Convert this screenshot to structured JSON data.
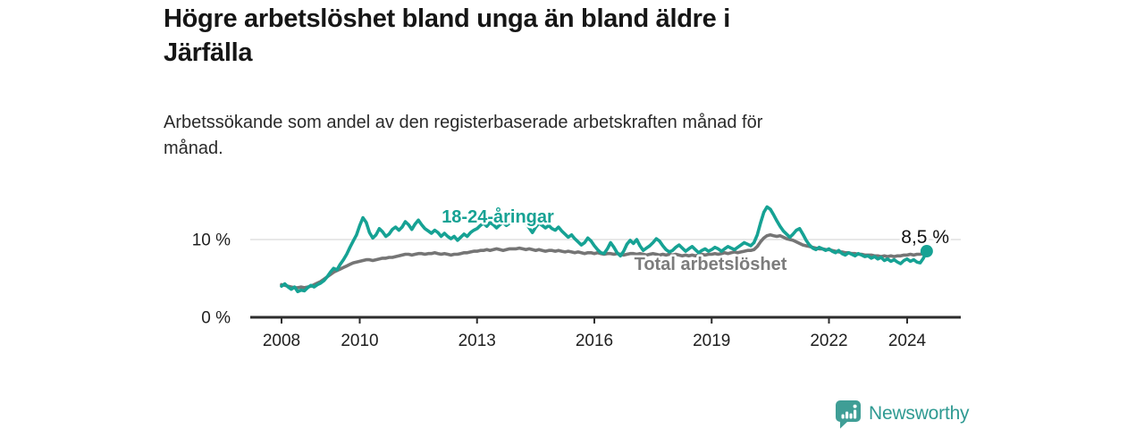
{
  "chart_data": {
    "type": "line",
    "title": "Högre arbetslöshet bland unga än bland äldre i Järfälla",
    "title_lines": [
      "Högre arbetslöshet bland unga än bland äldre i",
      "Järfälla"
    ],
    "subtitle": "Arbetssökande som andel av den registerbaserade arbetskraften månad för månad.",
    "subtitle_lines": [
      "Arbetssökande som andel av den registerbaserade arbetskraften månad för",
      "månad."
    ],
    "xlabel": "",
    "ylabel": "",
    "frequency": "monthly",
    "x_start": "2008-01",
    "x_end": "2024-07",
    "ylim": [
      0,
      16
    ],
    "grid": "single horizontal gridline at 10 %",
    "legend_position": "inline-labels-on-lines",
    "x_ticks": [
      2008,
      2010,
      2013,
      2016,
      2019,
      2022,
      2024
    ],
    "y_ticks": [
      {
        "value": 10,
        "label": "10 %"
      },
      {
        "value": 0,
        "label": "0 %"
      }
    ],
    "end_annotation": {
      "label": "8,5 %",
      "value": 8.5,
      "series": "18-24-åringar"
    },
    "series": [
      {
        "name": "Total arbetslöshet",
        "color": "#757575",
        "values": [
          4.2,
          4.1,
          4.0,
          3.9,
          3.8,
          3.8,
          3.9,
          3.8,
          3.9,
          4.0,
          4.2,
          4.4,
          4.6,
          4.9,
          5.2,
          5.5,
          5.8,
          6.0,
          6.2,
          6.4,
          6.6,
          6.8,
          7.0,
          7.1,
          7.2,
          7.3,
          7.4,
          7.4,
          7.3,
          7.4,
          7.5,
          7.6,
          7.6,
          7.7,
          7.7,
          7.8,
          7.9,
          8.0,
          8.1,
          8.1,
          8.0,
          8.1,
          8.2,
          8.2,
          8.1,
          8.2,
          8.2,
          8.3,
          8.2,
          8.1,
          8.2,
          8.1,
          8.0,
          8.1,
          8.1,
          8.2,
          8.3,
          8.3,
          8.4,
          8.5,
          8.5,
          8.6,
          8.6,
          8.7,
          8.6,
          8.7,
          8.8,
          8.7,
          8.6,
          8.7,
          8.8,
          8.8,
          8.8,
          8.9,
          8.8,
          8.7,
          8.8,
          8.7,
          8.6,
          8.7,
          8.6,
          8.5,
          8.6,
          8.6,
          8.5,
          8.6,
          8.5,
          8.4,
          8.5,
          8.4,
          8.3,
          8.4,
          8.3,
          8.2,
          8.3,
          8.3,
          8.2,
          8.3,
          8.2,
          8.1,
          8.2,
          8.2,
          8.1,
          8.2,
          8.1,
          8.0,
          8.1,
          8.2,
          8.2,
          8.1,
          8.2,
          8.1,
          8.0,
          8.1,
          8.2,
          8.1,
          8.0,
          8.1,
          8.0,
          8.1,
          8.0,
          8.1,
          8.0,
          7.9,
          8.0,
          7.9,
          8.0,
          7.9,
          8.0,
          8.1,
          8.0,
          8.1,
          8.1,
          8.2,
          8.1,
          8.2,
          8.3,
          8.2,
          8.3,
          8.4,
          8.3,
          8.4,
          8.5,
          8.6,
          8.6,
          8.7,
          9.1,
          9.7,
          10.2,
          10.5,
          10.6,
          10.5,
          10.4,
          10.5,
          10.3,
          10.1,
          10.0,
          9.9,
          9.7,
          9.5,
          9.3,
          9.2,
          9.1,
          9.0,
          8.9,
          8.8,
          8.8,
          8.7,
          8.7,
          8.6,
          8.5,
          8.4,
          8.4,
          8.3,
          8.3,
          8.2,
          8.2,
          8.1,
          8.1,
          8.0,
          8.0,
          8.0,
          7.9,
          7.9,
          7.8,
          7.9,
          7.8,
          7.9,
          7.8,
          7.9,
          7.9,
          8.0,
          8.0,
          8.1,
          8.0,
          8.1,
          8.1,
          8.2,
          8.1
        ]
      },
      {
        "name": "18-24-åringar",
        "color": "#16a294",
        "values": [
          4.0,
          4.3,
          3.9,
          3.6,
          3.9,
          3.3,
          3.5,
          3.4,
          3.8,
          4.1,
          3.9,
          4.2,
          4.4,
          4.7,
          5.2,
          5.8,
          6.3,
          6.1,
          6.8,
          7.4,
          8.1,
          9.0,
          9.8,
          10.6,
          11.8,
          12.8,
          12.2,
          10.9,
          10.2,
          10.6,
          11.4,
          11.0,
          10.4,
          10.7,
          11.3,
          11.6,
          11.2,
          11.6,
          12.3,
          11.9,
          11.3,
          12.0,
          12.5,
          11.9,
          11.4,
          11.1,
          10.8,
          11.2,
          10.9,
          10.4,
          10.8,
          10.4,
          10.1,
          10.4,
          9.9,
          10.3,
          10.7,
          10.4,
          10.9,
          11.2,
          11.4,
          11.8,
          12.1,
          11.7,
          12.2,
          11.9,
          11.5,
          11.9,
          12.2,
          11.8,
          12.1,
          12.4,
          12.6,
          12.2,
          12.7,
          12.1,
          11.5,
          10.9,
          11.6,
          12.1,
          11.8,
          11.5,
          11.8,
          11.4,
          11.2,
          11.6,
          11.1,
          10.7,
          10.3,
          10.6,
          10.1,
          9.7,
          9.3,
          9.6,
          10.2,
          9.8,
          9.2,
          8.7,
          8.3,
          8.2,
          8.8,
          9.6,
          9.0,
          8.3,
          7.9,
          8.5,
          9.4,
          9.9,
          9.5,
          10.0,
          9.2,
          8.6,
          8.9,
          9.2,
          9.6,
          10.1,
          9.8,
          9.2,
          8.7,
          8.4,
          8.6,
          9.0,
          9.3,
          8.9,
          8.5,
          8.8,
          9.1,
          8.7,
          8.3,
          8.6,
          8.8,
          8.5,
          8.7,
          9.0,
          8.8,
          8.5,
          8.8,
          9.1,
          8.9,
          8.7,
          9.0,
          9.3,
          9.6,
          9.4,
          9.2,
          9.6,
          10.6,
          12.1,
          13.5,
          14.2,
          13.9,
          13.2,
          12.4,
          11.7,
          11.1,
          10.7,
          10.3,
          10.7,
          11.2,
          11.4,
          10.7,
          9.9,
          9.3,
          8.9,
          8.7,
          9.0,
          8.8,
          8.6,
          8.8,
          8.5,
          8.3,
          8.6,
          8.2,
          8.0,
          8.3,
          8.1,
          7.9,
          8.2,
          8.0,
          7.8,
          7.9,
          7.6,
          7.8,
          7.5,
          7.7,
          7.3,
          7.5,
          7.2,
          7.4,
          7.1,
          6.9,
          7.3,
          7.5,
          7.2,
          7.4,
          7.1,
          7.0,
          7.6,
          8.5
        ]
      }
    ]
  },
  "colors": {
    "youth_line": "#16a294",
    "total_line": "#757575",
    "gridline": "#d9d9d9",
    "axis": "#2d2d2d",
    "brand_teal": "#2f9a92"
  },
  "footer": {
    "brand": "Newsworthy"
  }
}
